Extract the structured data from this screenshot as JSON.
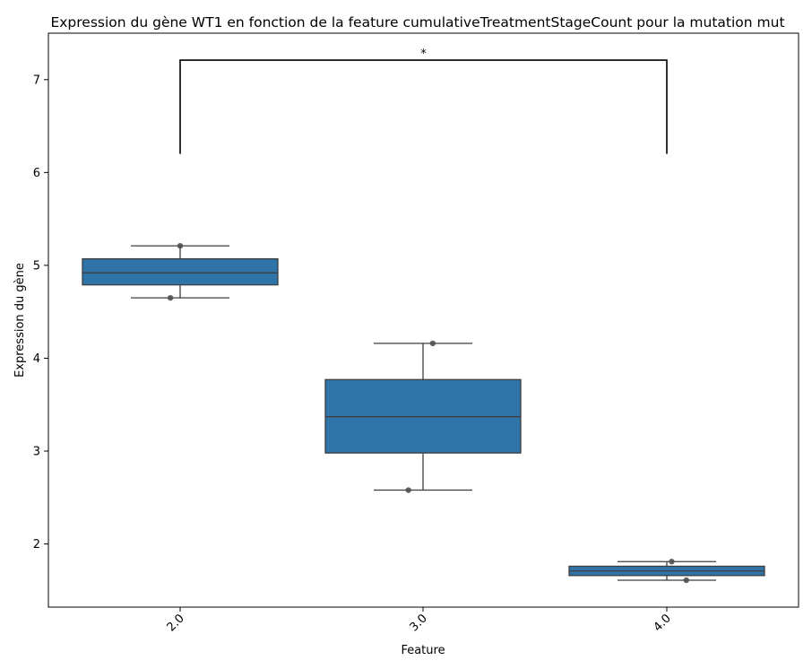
{
  "chart_data": {
    "type": "box",
    "title": "Expression du gène WT1 en fonction de la feature cumulativeTreatmentStageCount pour la mutation mut",
    "xlabel": "Feature",
    "ylabel": "Expression du gène",
    "categories": [
      "2.0",
      "3.0",
      "4.0"
    ],
    "ylim": [
      1.32,
      7.5
    ],
    "yticks": [
      2,
      3,
      4,
      5,
      6,
      7
    ],
    "ytick_labels": [
      "2",
      "3",
      "4",
      "5",
      "6",
      "7"
    ],
    "box_color": "#2e74a8",
    "grid": false,
    "boxes": [
      {
        "category": "2.0",
        "q1": 4.79,
        "median": 4.92,
        "q3": 5.07,
        "whisker_low": 4.65,
        "whisker_high": 5.21
      },
      {
        "category": "3.0",
        "q1": 2.98,
        "median": 3.37,
        "q3": 3.77,
        "whisker_low": 2.58,
        "whisker_high": 4.16
      },
      {
        "category": "4.0",
        "q1": 1.66,
        "median": 1.71,
        "q3": 1.76,
        "whisker_low": 1.61,
        "whisker_high": 1.81
      }
    ],
    "points": [
      {
        "category": "2.0",
        "y": 5.21,
        "jitter": 0.0
      },
      {
        "category": "2.0",
        "y": 4.65,
        "jitter": -0.04
      },
      {
        "category": "3.0",
        "y": 4.16,
        "jitter": 0.04
      },
      {
        "category": "3.0",
        "y": 2.58,
        "jitter": -0.06
      },
      {
        "category": "4.0",
        "y": 1.81,
        "jitter": 0.02
      },
      {
        "category": "4.0",
        "y": 1.61,
        "jitter": 0.08
      }
    ],
    "significance": [
      {
        "from": "2.0",
        "to": "4.0",
        "y_low": 6.2,
        "y_high": 7.21,
        "label": "*"
      }
    ]
  }
}
